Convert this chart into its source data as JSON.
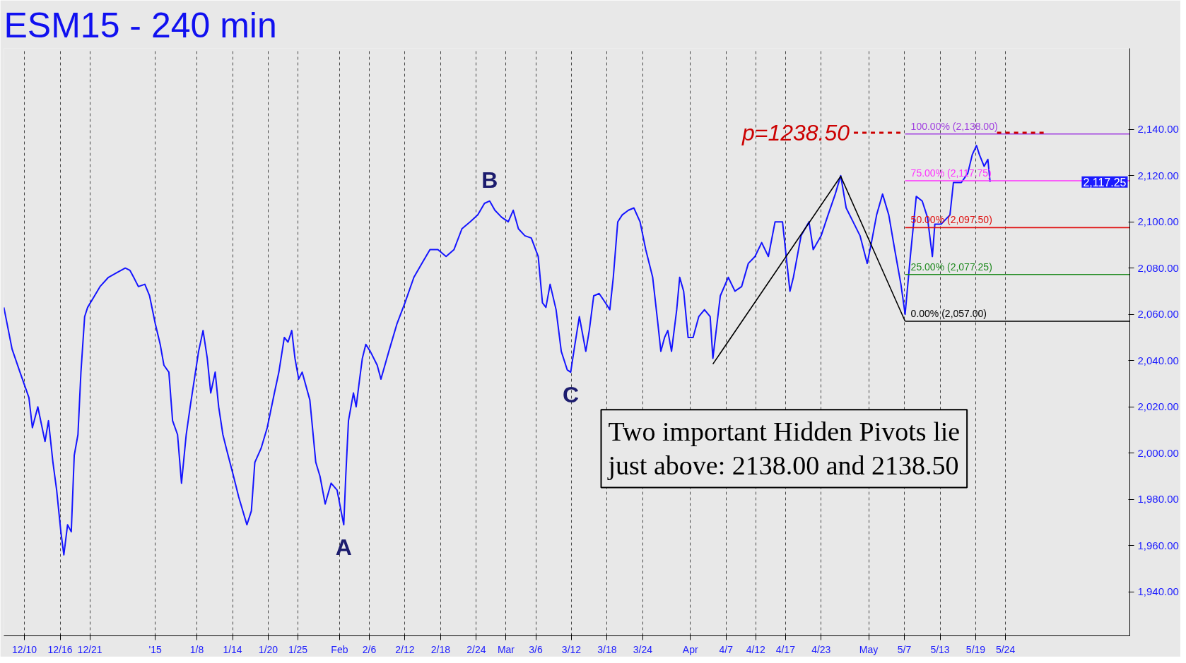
{
  "chart_data": {
    "type": "line",
    "title": "ESM15 - 240 min",
    "xlim": [
      "2014-12-06T13:00",
      "2015-06-13T22:00"
    ],
    "ylim": [
      1921,
      2175
    ],
    "xticks": [
      {
        "value": "2014-12-10",
        "label": "12/10"
      },
      {
        "value": "2014-12-16",
        "label": "12/16"
      },
      {
        "value": "2014-12-21",
        "label": "12/21"
      },
      {
        "value": "2015-01-01",
        "label": "'15"
      },
      {
        "value": "2015-01-08",
        "label": "1/8"
      },
      {
        "value": "2015-01-14",
        "label": "1/14"
      },
      {
        "value": "2015-01-20",
        "label": "1/20"
      },
      {
        "value": "2015-01-25",
        "label": "1/25"
      },
      {
        "value": "2015-02-01",
        "label": "Feb"
      },
      {
        "value": "2015-02-06",
        "label": "2/6"
      },
      {
        "value": "2015-02-12",
        "label": "2/12"
      },
      {
        "value": "2015-02-18",
        "label": "2/18"
      },
      {
        "value": "2015-02-24",
        "label": "2/24"
      },
      {
        "value": "2015-03-01",
        "label": "Mar"
      },
      {
        "value": "2015-03-06",
        "label": "3/6"
      },
      {
        "value": "2015-03-12",
        "label": "3/12"
      },
      {
        "value": "2015-03-18",
        "label": "3/18"
      },
      {
        "value": "2015-03-24",
        "label": "3/24"
      },
      {
        "value": "2015-04-01",
        "label": "Apr"
      },
      {
        "value": "2015-04-07",
        "label": "4/7"
      },
      {
        "value": "2015-04-12",
        "label": "4/12"
      },
      {
        "value": "2015-04-17",
        "label": "4/17"
      },
      {
        "value": "2015-04-23",
        "label": "4/23"
      },
      {
        "value": "2015-05-01",
        "label": "May"
      },
      {
        "value": "2015-05-07",
        "label": "5/7"
      },
      {
        "value": "2015-05-13",
        "label": "5/13"
      },
      {
        "value": "2015-05-19",
        "label": "5/19"
      },
      {
        "value": "2015-05-24",
        "label": "5/24"
      }
    ],
    "yticks": [
      {
        "value": 1940,
        "label": "1,940.00"
      },
      {
        "value": 1960,
        "label": "1,960.00"
      },
      {
        "value": 1980,
        "label": "1,980.00"
      },
      {
        "value": 2000,
        "label": "2,000.00"
      },
      {
        "value": 2020,
        "label": "2,020.00"
      },
      {
        "value": 2040,
        "label": "2,040.00"
      },
      {
        "value": 2060,
        "label": "2,060.00"
      },
      {
        "value": 2080,
        "label": "2,080.00"
      },
      {
        "value": 2100,
        "label": "2,100.00"
      },
      {
        "value": 2120,
        "label": "2,120.00"
      },
      {
        "value": 2140,
        "label": "2,140.00"
      }
    ],
    "grid": "x",
    "line_style": "solid",
    "series": [
      {
        "color": "#1414ff",
        "x": [
          "2014-12-06T13:00",
          "2014-12-07T22:00",
          "2014-12-09T06:00",
          "2014-12-10T18:00",
          "2014-12-11T08:00",
          "2014-12-12T06:00",
          "2014-12-13T11:00",
          "2014-12-14T01:00",
          "2014-12-14T19:00",
          "2014-12-15T10:00",
          "2014-12-16T03:00",
          "2014-12-16T15:00",
          "2014-12-17T06:00",
          "2014-12-17T21:00",
          "2014-12-18T09:00",
          "2014-12-19T00:00",
          "2014-12-19T12:00",
          "2014-12-20T03:00",
          "2014-12-20T15:00",
          "2014-12-21T19:00",
          "2014-12-22T17:00",
          "2014-12-24T03:00",
          "2014-12-25T13:00",
          "2014-12-26T23:00",
          "2014-12-27T18:00",
          "2014-12-28T09:00",
          "2014-12-29T04:00",
          "2014-12-30T06:00",
          "2014-12-31T01:00",
          "2015-01-01T00:00",
          "2015-01-01T20:00",
          "2015-01-02T11:00",
          "2015-01-03T07:00",
          "2015-01-03T22:00",
          "2015-01-04T18:00",
          "2015-01-05T10:00",
          "2015-01-06T05:00",
          "2015-01-06T21:00",
          "2015-01-08T07:00",
          "2015-01-09T01:00",
          "2015-01-09T18:00",
          "2015-01-10T08:00",
          "2015-01-11T02:00",
          "2015-01-11T16:00",
          "2015-01-12T09:00",
          "2015-01-12T23:00",
          "2015-01-14T04:00",
          "2015-01-15T01:00",
          "2015-01-16T10:00",
          "2015-01-17T04:00",
          "2015-01-17T18:00",
          "2015-01-18T19:00",
          "2015-01-19T20:00",
          "2015-01-21T01:00",
          "2015-01-21T19:00",
          "2015-01-22T17:00",
          "2015-01-23T08:00",
          "2015-01-23T23:00",
          "2015-01-24T12:00",
          "2015-01-25T03:00",
          "2015-01-25T17:00",
          "2015-01-27T00:00",
          "2015-01-28T00:00",
          "2015-01-28T17:00",
          "2015-01-29T14:00",
          "2015-01-30T14:00",
          "2015-01-31T14:00",
          "2015-02-01T06:00",
          "2015-02-01T17:00",
          "2015-02-02T01:00",
          "2015-02-02T12:00",
          "2015-02-03T08:00",
          "2015-02-03T19:00",
          "2015-02-04T09:00",
          "2015-02-04T20:00",
          "2015-02-05T10:00",
          "2015-02-06T04:00",
          "2015-02-07T08:00",
          "2015-02-07T23:00",
          "2015-02-09T07:00",
          "2015-02-10T16:00",
          "2015-02-12T00:00",
          "2015-02-13T12:00",
          "2015-02-14T20:00",
          "2015-02-16T05:00",
          "2015-02-17T13:00",
          "2015-02-18T22:00",
          "2015-02-20T06:00",
          "2015-02-21T14:00",
          "2015-02-22T23:00",
          "2015-02-24T06:00",
          "2015-02-25T09:00",
          "2015-02-26T06:00",
          "2015-02-27T03:00",
          "2015-02-28T06:00",
          "2015-03-01T09:00",
          "2015-03-02T05:00",
          "2015-03-03T02:00",
          "2015-03-04T04:00",
          "2015-03-05T06:00",
          "2015-03-06T10:00",
          "2015-03-07T03:00",
          "2015-03-07T17:00",
          "2015-03-08T10:00",
          "2015-03-09T10:00",
          "2015-03-10T07:00",
          "2015-03-11T07:00",
          "2015-03-11T21:00",
          "2015-03-12T14:00",
          "2015-03-13T08:00",
          "2015-03-14T10:00",
          "2015-03-15T00:00",
          "2015-03-15T18:00",
          "2015-03-16T16:00",
          "2015-03-17T17:00",
          "2015-03-18T11:00",
          "2015-03-19T01:00",
          "2015-03-19T19:00",
          "2015-03-20T13:00",
          "2015-03-21T14:00",
          "2015-03-22T12:00",
          "2015-03-23T13:00",
          "2015-03-24T12:00",
          "2015-03-25T16:00",
          "2015-03-26T13:00",
          "2015-03-27T01:00",
          "2015-03-27T16:00",
          "2015-03-28T05:00",
          "2015-03-28T20:00",
          "2015-03-29T17:00",
          "2015-03-30T05:00",
          "2015-03-30T21:00",
          "2015-03-31T15:00",
          "2015-04-01T11:00",
          "2015-04-02T10:00",
          "2015-04-03T09:00",
          "2015-04-04T08:00",
          "2015-04-04T19:00",
          "2015-04-06T01:00",
          "2015-04-07T09:00",
          "2015-04-08T12:00",
          "2015-04-09T15:00",
          "2015-04-10T18:00",
          "2015-04-11T21:00",
          "2015-04-13T00:00",
          "2015-04-14T03:00",
          "2015-04-15T06:00",
          "2015-04-16T12:00",
          "2015-04-17T18:00",
          "2015-04-18T08:00",
          "2015-04-19T15:00",
          "2015-04-20T23:00",
          "2015-04-21T16:00",
          "2015-04-23T00:00",
          "2015-04-24T04:00",
          "2015-04-25T09:00",
          "2015-04-26T07:00",
          "2015-04-27T05:00",
          "2015-04-28T09:00",
          "2015-04-29T13:00",
          "2015-04-30T18:00",
          "2015-05-01T11:00",
          "2015-05-02T08:00",
          "2015-05-03T08:00",
          "2015-05-04T09:00",
          "2015-05-05T09:00",
          "2015-05-06T10:00",
          "2015-05-07T03:00",
          "2015-05-08T00:00",
          "2015-05-09T00:00",
          "2015-05-10T00:00",
          "2015-05-10T21:00",
          "2015-05-11T17:00",
          "2015-05-12T03:00",
          "2015-05-13T04:00",
          "2015-05-14T16:00",
          "2015-05-15T06:00",
          "2015-05-16T14:00",
          "2015-05-17T16:00",
          "2015-05-18T10:00",
          "2015-05-19T03:00",
          "2015-05-19T15:00",
          "2015-05-20T10:00",
          "2015-05-21T01:00",
          "2015-05-21T10:00"
        ],
        "values": [
          2063,
          2045,
          2035,
          2024,
          2011,
          2020,
          2005,
          2014,
          1996,
          1984,
          1966,
          1956,
          1969,
          1966,
          1999,
          2008,
          2035,
          2059,
          2063,
          2068,
          2072,
          2076,
          2078,
          2080,
          2079,
          2076,
          2072,
          2073,
          2068,
          2056,
          2047,
          2038,
          2035,
          2014,
          2008,
          1987,
          2008,
          2020,
          2044,
          2053,
          2041,
          2026,
          2035,
          2020,
          2008,
          2002,
          1990,
          1981,
          1969,
          1975,
          1996,
          2002,
          2011,
          2026,
          2035,
          2050,
          2048,
          2053,
          2041,
          2032,
          2035,
          2023,
          1996,
          1990,
          1978,
          1987,
          1984,
          1975,
          1969,
          1990,
          2014,
          2026,
          2020,
          2032,
          2041,
          2047,
          2044,
          2038,
          2032,
          2044,
          2056,
          2065,
          2076,
          2082,
          2088,
          2088,
          2085,
          2088,
          2097,
          2100,
          2103,
          2108,
          2109,
          2105,
          2102,
          2100,
          2105,
          2097,
          2094,
          2093,
          2085,
          2065,
          2063,
          2073,
          2062,
          2044,
          2036,
          2035,
          2047,
          2059,
          2044,
          2053,
          2068,
          2069,
          2065,
          2062,
          2076,
          2100,
          2103,
          2105,
          2106,
          2100,
          2088,
          2076,
          2056,
          2044,
          2050,
          2053,
          2044,
          2062,
          2076,
          2070,
          2050,
          2050,
          2059,
          2062,
          2059,
          2041,
          2068,
          2076,
          2070,
          2072,
          2082,
          2085,
          2091,
          2085,
          2100,
          2100,
          2070,
          2076,
          2094,
          2100,
          2088,
          2094,
          2103,
          2112,
          2120,
          2106,
          2100,
          2094,
          2082,
          2091,
          2103,
          2112,
          2103,
          2088,
          2073,
          2060,
          2085,
          2111,
          2109,
          2102,
          2085,
          2099,
          2099,
          2103,
          2117,
          2117,
          2121,
          2129,
          2133,
          2129,
          2124,
          2127,
          2117.25
        ]
      },
      {
        "color": "#000000",
        "x": [
          "2015-04-04T19:00",
          "2015-04-26T07:00",
          "2015-05-07T03:00"
        ],
        "values": [
          2038.5,
          2119.7,
          2057
        ]
      },
      {
        "name": "100.00% (2,138.00)",
        "color": "#a040e0",
        "x": [
          "2015-05-07T03:00",
          "2015-06-13T22:00"
        ],
        "values": [
          2138,
          2138
        ]
      },
      {
        "name": "75.00% (2,117.75)",
        "color": "#ff30ff",
        "x": [
          "2015-05-07T03:00",
          "2015-06-13T22:00"
        ],
        "values": [
          2117.75,
          2117.75
        ]
      },
      {
        "name": "50.00% (2,097.50)",
        "color": "#e01010",
        "x": [
          "2015-05-07T03:00",
          "2015-06-13T22:00"
        ],
        "values": [
          2097.5,
          2097.5
        ]
      },
      {
        "name": "25.00% (2,077.25)",
        "color": "#1f8a1f",
        "x": [
          "2015-05-07T03:00",
          "2015-06-13T22:00"
        ],
        "values": [
          2077.25,
          2077.25
        ]
      },
      {
        "name": "0.00% (2,057.00)",
        "color": "#000000",
        "x": [
          "2015-05-07T03:00",
          "2015-06-13T22:00"
        ],
        "values": [
          2057,
          2057
        ]
      },
      {
        "color": "#cc0000",
        "line_style": "dashed",
        "x": [
          "2015-04-28T12:00",
          "2015-05-06T10:00",
          null,
          "2015-05-22T14:00",
          "2015-05-30T12:00"
        ],
        "values": [
          2138.5,
          2138.5,
          null,
          2138.5,
          2138.5
        ]
      }
    ],
    "annotations": [
      {
        "text": "A",
        "x": "2015-02-01T17:00",
        "y": 1969
      },
      {
        "text": "B",
        "x": "2015-02-26T06:00",
        "y": 2109
      },
      {
        "text": "C",
        "x": "2015-03-11T21:00",
        "y": 2035
      },
      {
        "text": "p=1238.50",
        "x": "2015-04-28T12:00",
        "y": 2138.5
      },
      {
        "text": "2,117.25",
        "y": 2117.25
      },
      "Two important Hidden Pivots lie\njust above: 2138.00 and 2138.50"
    ]
  }
}
